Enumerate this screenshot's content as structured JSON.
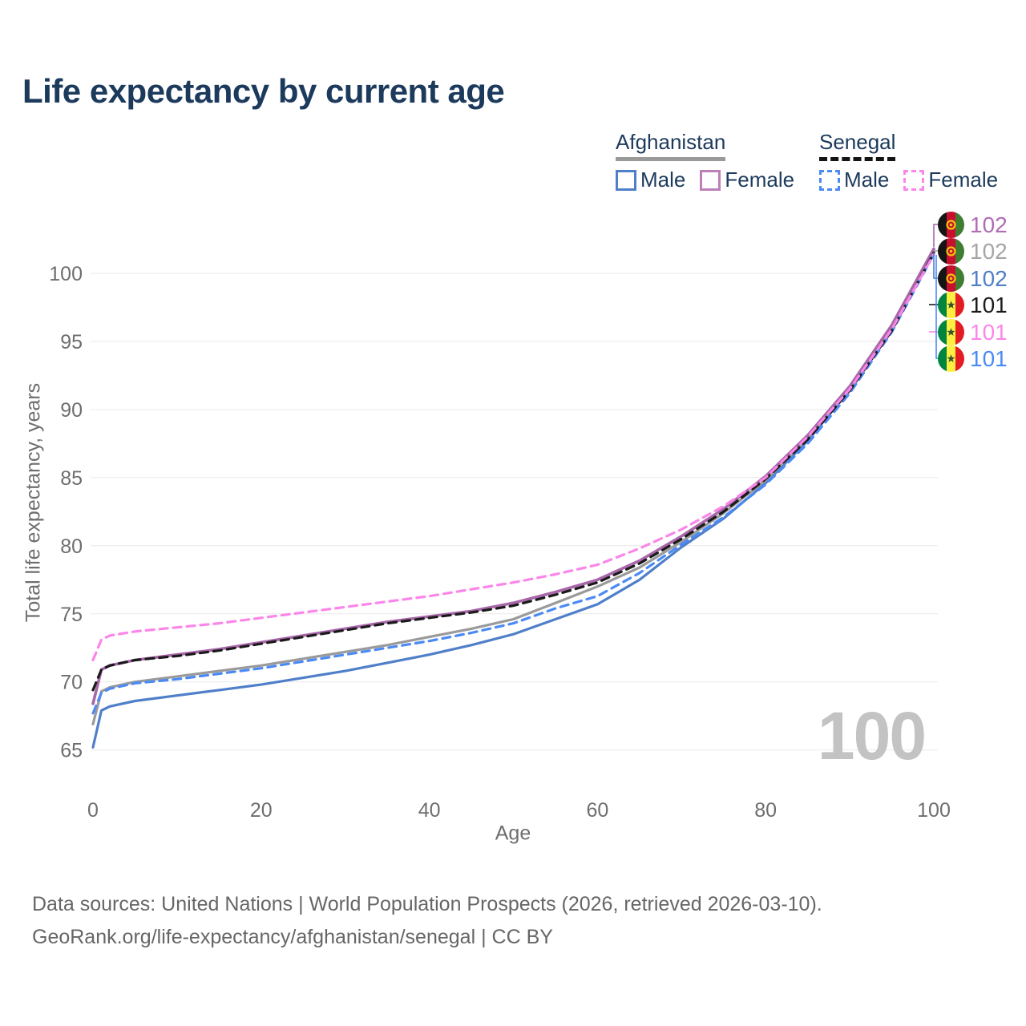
{
  "title": "Life expectancy by current age",
  "legend": {
    "groups": [
      {
        "country": "Afghanistan",
        "line_style": "solid",
        "both_sexes_color": "#9a9a9a",
        "items": [
          {
            "label": "Male",
            "color": "#4f7fc9",
            "dashed": false
          },
          {
            "label": "Female",
            "color": "#bd7fba",
            "dashed": false
          }
        ]
      },
      {
        "country": "Senegal",
        "line_style": "dashed",
        "both_sexes_color": "#141414",
        "items": [
          {
            "label": "Male",
            "color": "#4b8af5",
            "dashed": true
          },
          {
            "label": "Female",
            "color": "#fb86e9",
            "dashed": true
          }
        ]
      }
    ]
  },
  "axes": {
    "x_label": "Age",
    "y_label": "Total life expectancy, years",
    "x_ticks": [
      0,
      20,
      40,
      60,
      80,
      100
    ],
    "y_ticks": [
      65,
      70,
      75,
      80,
      85,
      90,
      95,
      100
    ]
  },
  "watermark": "100",
  "end_labels": [
    {
      "value": "102",
      "color": "#b06cb4",
      "flag": "af",
      "series": "Afghanistan Female"
    },
    {
      "value": "102",
      "color": "#a5a5a5",
      "flag": "af",
      "series": "Afghanistan Both sexes"
    },
    {
      "value": "102",
      "color": "#4f7fc9",
      "flag": "af",
      "series": "Afghanistan Male"
    },
    {
      "value": "101",
      "color": "#1a1a1a",
      "flag": "sn",
      "series": "Senegal Both sexes"
    },
    {
      "value": "101",
      "color": "#fb86e9",
      "flag": "sn",
      "series": "Senegal Female"
    },
    {
      "value": "101",
      "color": "#4b8af5",
      "flag": "sn",
      "series": "Senegal Male"
    }
  ],
  "footer": {
    "line1": "Data sources: United Nations | World Population Prospects (2026, retrieved 2026-03-10).",
    "line2": "GeoRank.org/life-expectancy/afghanistan/senegal | CC BY"
  },
  "chart_data": {
    "type": "line",
    "title": "Life expectancy by current age",
    "xlabel": "Age",
    "ylabel": "Total life expectancy, years",
    "xlim": [
      0,
      100
    ],
    "ylim": [
      63.5,
      103
    ],
    "grid": "horizontal-only",
    "legend_position": "top-right",
    "x": [
      0,
      1,
      2,
      5,
      10,
      15,
      20,
      25,
      30,
      35,
      40,
      45,
      50,
      55,
      60,
      65,
      70,
      75,
      80,
      85,
      90,
      95,
      100
    ],
    "series": [
      {
        "name": "Afghanistan Male",
        "style": "solid",
        "color": "#4f7fc9",
        "values": [
          65.2,
          67.9,
          68.2,
          68.6,
          69.0,
          69.4,
          69.8,
          70.3,
          70.8,
          71.4,
          72.0,
          72.7,
          73.5,
          74.6,
          75.7,
          77.5,
          79.9,
          82.0,
          84.6,
          87.7,
          91.5,
          96.0,
          101.6
        ]
      },
      {
        "name": "Afghanistan Both sexes",
        "style": "solid",
        "color": "#9a9a9a",
        "values": [
          66.9,
          69.3,
          69.6,
          70.0,
          70.4,
          70.8,
          71.2,
          71.7,
          72.2,
          72.7,
          73.3,
          73.9,
          74.6,
          75.8,
          77.0,
          78.4,
          80.3,
          82.4,
          84.8,
          87.9,
          91.6,
          96.1,
          101.7
        ]
      },
      {
        "name": "Afghanistan Female",
        "style": "solid",
        "color": "#a867a8",
        "values": [
          68.4,
          70.9,
          71.2,
          71.6,
          72.0,
          72.4,
          72.9,
          73.4,
          73.9,
          74.4,
          74.8,
          75.2,
          75.8,
          76.6,
          77.5,
          78.9,
          80.7,
          82.7,
          85.1,
          88.1,
          91.7,
          96.2,
          101.8
        ]
      },
      {
        "name": "Senegal Male",
        "style": "dashed",
        "color": "#4b8af5",
        "values": [
          67.7,
          69.2,
          69.5,
          69.9,
          70.2,
          70.6,
          71.0,
          71.5,
          72.0,
          72.5,
          73.0,
          73.6,
          74.3,
          75.4,
          76.3,
          78.0,
          80.1,
          82.1,
          84.5,
          87.5,
          91.2,
          95.7,
          101.4
        ]
      },
      {
        "name": "Senegal Both sexes",
        "style": "dashed",
        "color": "#1a1a1a",
        "values": [
          69.4,
          70.9,
          71.2,
          71.6,
          71.9,
          72.3,
          72.8,
          73.3,
          73.8,
          74.3,
          74.7,
          75.1,
          75.6,
          76.4,
          77.3,
          78.7,
          80.5,
          82.5,
          84.9,
          87.8,
          91.4,
          95.8,
          101.5
        ]
      },
      {
        "name": "Senegal Female",
        "style": "dashed",
        "color": "#fb86e9",
        "values": [
          71.6,
          73.1,
          73.4,
          73.7,
          74.0,
          74.3,
          74.7,
          75.1,
          75.5,
          75.9,
          76.3,
          76.8,
          77.3,
          77.9,
          78.6,
          79.8,
          81.2,
          82.9,
          85.0,
          88.0,
          91.5,
          95.9,
          101.4
        ]
      }
    ],
    "end_value_labels": {
      "Afghanistan": 102,
      "Senegal": 101
    },
    "hover_age_indicator": 100
  }
}
